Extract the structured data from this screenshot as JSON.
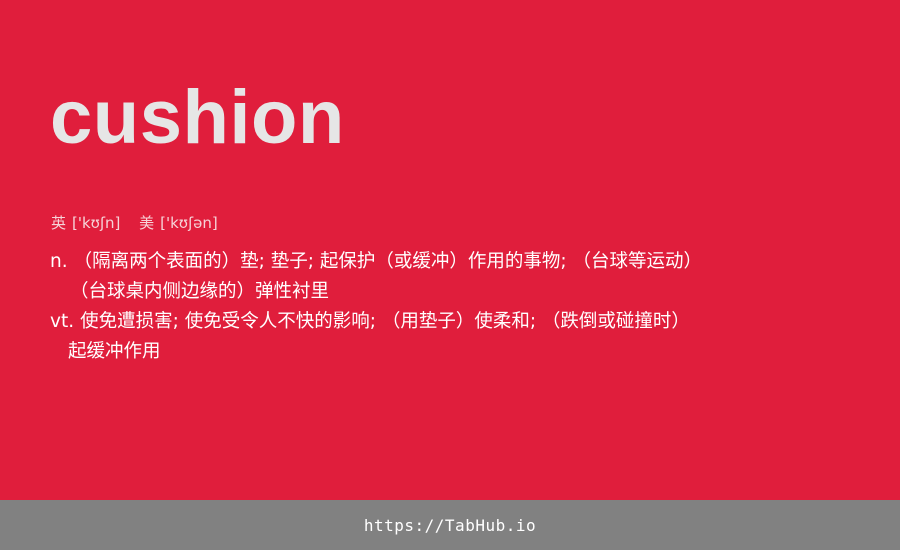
{
  "word": "cushion",
  "phonetics": {
    "uk_label": "英",
    "uk_ipa": "['kʊʃn]",
    "us_label": "美",
    "us_ipa": "['kʊʃən]"
  },
  "definitions": {
    "line1_pos": "n.",
    "line1_text": "（隔离两个表面的）垫; 垫子; 起保护（或缓冲）作用的事物; （台球等运动）",
    "line2_text": "（台球桌内侧边缘的）弹性衬里",
    "line3_pos": "vt.",
    "line3_text": "使免遭损害; 使免受令人不快的影响; （用垫子）使柔和; （跌倒或碰撞时）",
    "line4_text": "起缓冲作用"
  },
  "footer": {
    "link_text": "https://TabHub.io"
  },
  "colors": {
    "background": "#e01e3c",
    "word": "#e6e6e6",
    "footer_bar": "#818181"
  }
}
